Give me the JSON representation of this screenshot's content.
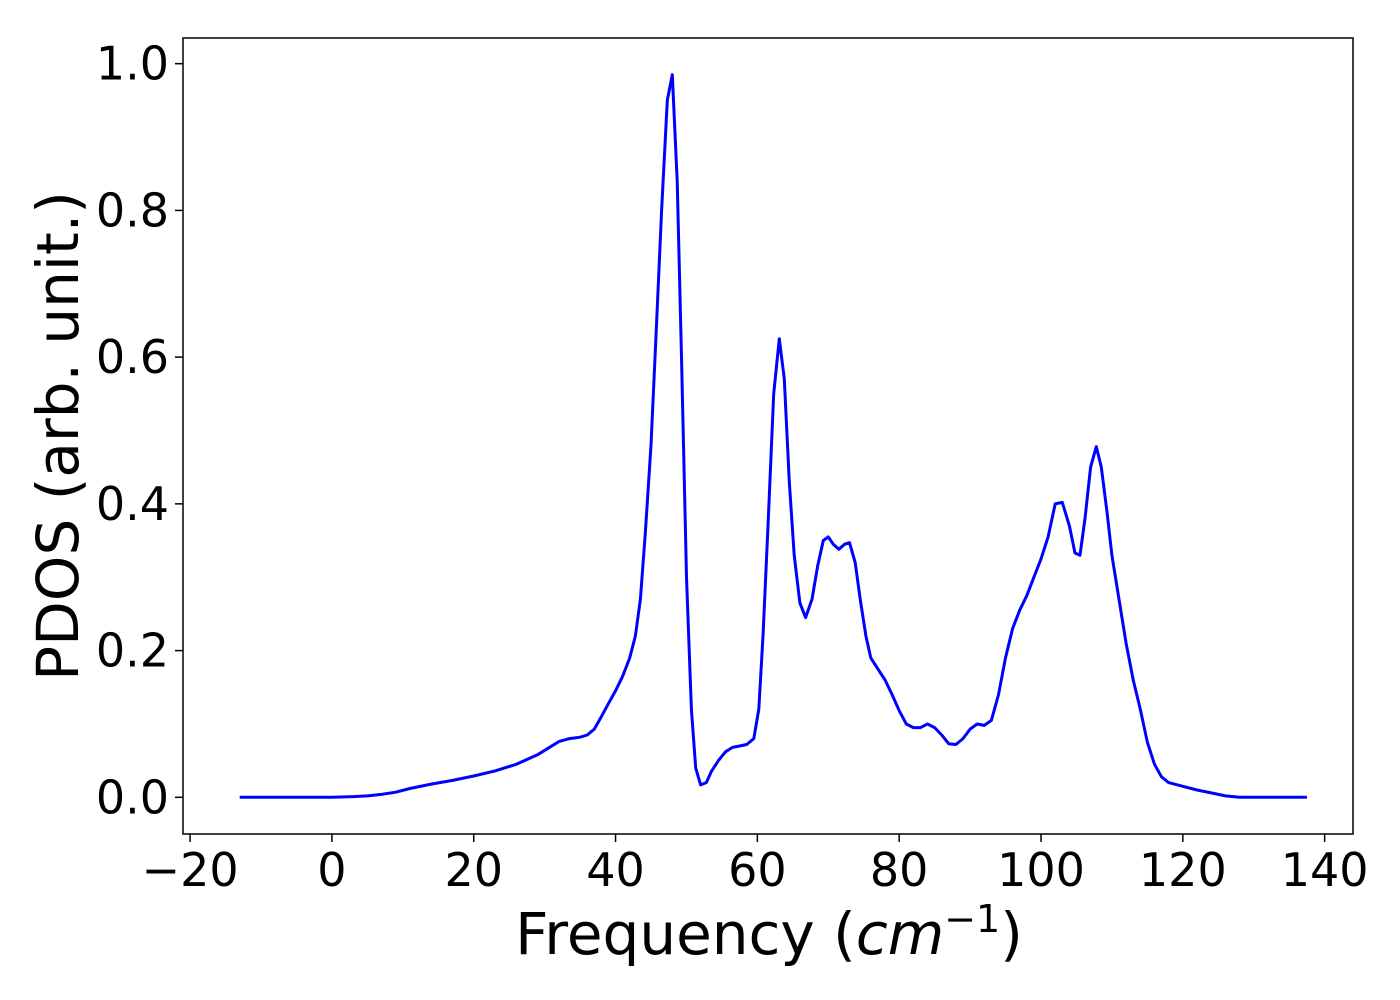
{
  "chart_data": {
    "type": "line",
    "title": "",
    "xlabel": "Frequency (",
    "xlabel_math_base": "cm",
    "xlabel_math_sup": "−1",
    "xlabel_close": ")",
    "ylabel": "PDOS (arb. unit.)",
    "xlim": [
      -21,
      144
    ],
    "ylim": [
      -0.05,
      1.035
    ],
    "xticks": [
      -20,
      0,
      20,
      40,
      60,
      80,
      100,
      120,
      140
    ],
    "xtick_labels": [
      "−20",
      "0",
      "20",
      "40",
      "60",
      "80",
      "100",
      "120",
      "140"
    ],
    "yticks": [
      0.0,
      0.2,
      0.4,
      0.6,
      0.8,
      1.0
    ],
    "ytick_labels": [
      "0.0",
      "0.2",
      "0.4",
      "0.6",
      "0.8",
      "1.0"
    ],
    "grid": false,
    "legend": "none",
    "series": [
      {
        "color": "#0000ff",
        "x": [
          -13,
          -5,
          0,
          3,
          5,
          7,
          9,
          11,
          14,
          17,
          20,
          23,
          26,
          29,
          30.5,
          32,
          33.5,
          35,
          36,
          37,
          38,
          39,
          40,
          41,
          42,
          42.8,
          43.5,
          44.2,
          45,
          45.8,
          46.5,
          47.3,
          48,
          48.7,
          49.3,
          50,
          50.7,
          51.3,
          52,
          52.8,
          53.5,
          54.5,
          55.5,
          56.5,
          57.5,
          58.5,
          59.5,
          60.2,
          60.8,
          61.5,
          62.3,
          63.1,
          63.8,
          64.5,
          65.2,
          66,
          66.8,
          67.7,
          68.5,
          69.3,
          70,
          70.7,
          71.5,
          72.3,
          73,
          73.8,
          74.5,
          75.3,
          76,
          77,
          78,
          79,
          80,
          81,
          82,
          83,
          84,
          85,
          86,
          87,
          88,
          89,
          90,
          91,
          92,
          93,
          94,
          95,
          96,
          97,
          98,
          99,
          100,
          101,
          102,
          103,
          104,
          104.8,
          105.5,
          106.2,
          107,
          107.8,
          108.5,
          109.3,
          110,
          111,
          112,
          113,
          114,
          115,
          116,
          117,
          118,
          120,
          122,
          124,
          126,
          128,
          130,
          132,
          134,
          137.5
        ],
        "y": [
          0,
          0,
          0,
          0.001,
          0.002,
          0.004,
          0.007,
          0.012,
          0.018,
          0.023,
          0.029,
          0.036,
          0.045,
          0.058,
          0.067,
          0.076,
          0.08,
          0.082,
          0.085,
          0.093,
          0.11,
          0.128,
          0.145,
          0.165,
          0.19,
          0.22,
          0.27,
          0.36,
          0.48,
          0.65,
          0.8,
          0.95,
          0.985,
          0.84,
          0.6,
          0.3,
          0.12,
          0.04,
          0.017,
          0.02,
          0.035,
          0.05,
          0.062,
          0.068,
          0.07,
          0.072,
          0.08,
          0.12,
          0.22,
          0.37,
          0.55,
          0.625,
          0.57,
          0.43,
          0.33,
          0.265,
          0.245,
          0.27,
          0.315,
          0.35,
          0.355,
          0.345,
          0.338,
          0.345,
          0.347,
          0.32,
          0.27,
          0.22,
          0.19,
          0.175,
          0.16,
          0.14,
          0.118,
          0.1,
          0.095,
          0.095,
          0.1,
          0.095,
          0.085,
          0.073,
          0.072,
          0.08,
          0.093,
          0.1,
          0.098,
          0.105,
          0.14,
          0.19,
          0.23,
          0.255,
          0.275,
          0.3,
          0.325,
          0.355,
          0.4,
          0.402,
          0.37,
          0.333,
          0.33,
          0.38,
          0.45,
          0.478,
          0.45,
          0.39,
          0.33,
          0.27,
          0.21,
          0.16,
          0.12,
          0.075,
          0.045,
          0.028,
          0.02,
          0.015,
          0.01,
          0.006,
          0.002,
          0,
          0,
          0,
          0,
          0
        ]
      }
    ]
  }
}
